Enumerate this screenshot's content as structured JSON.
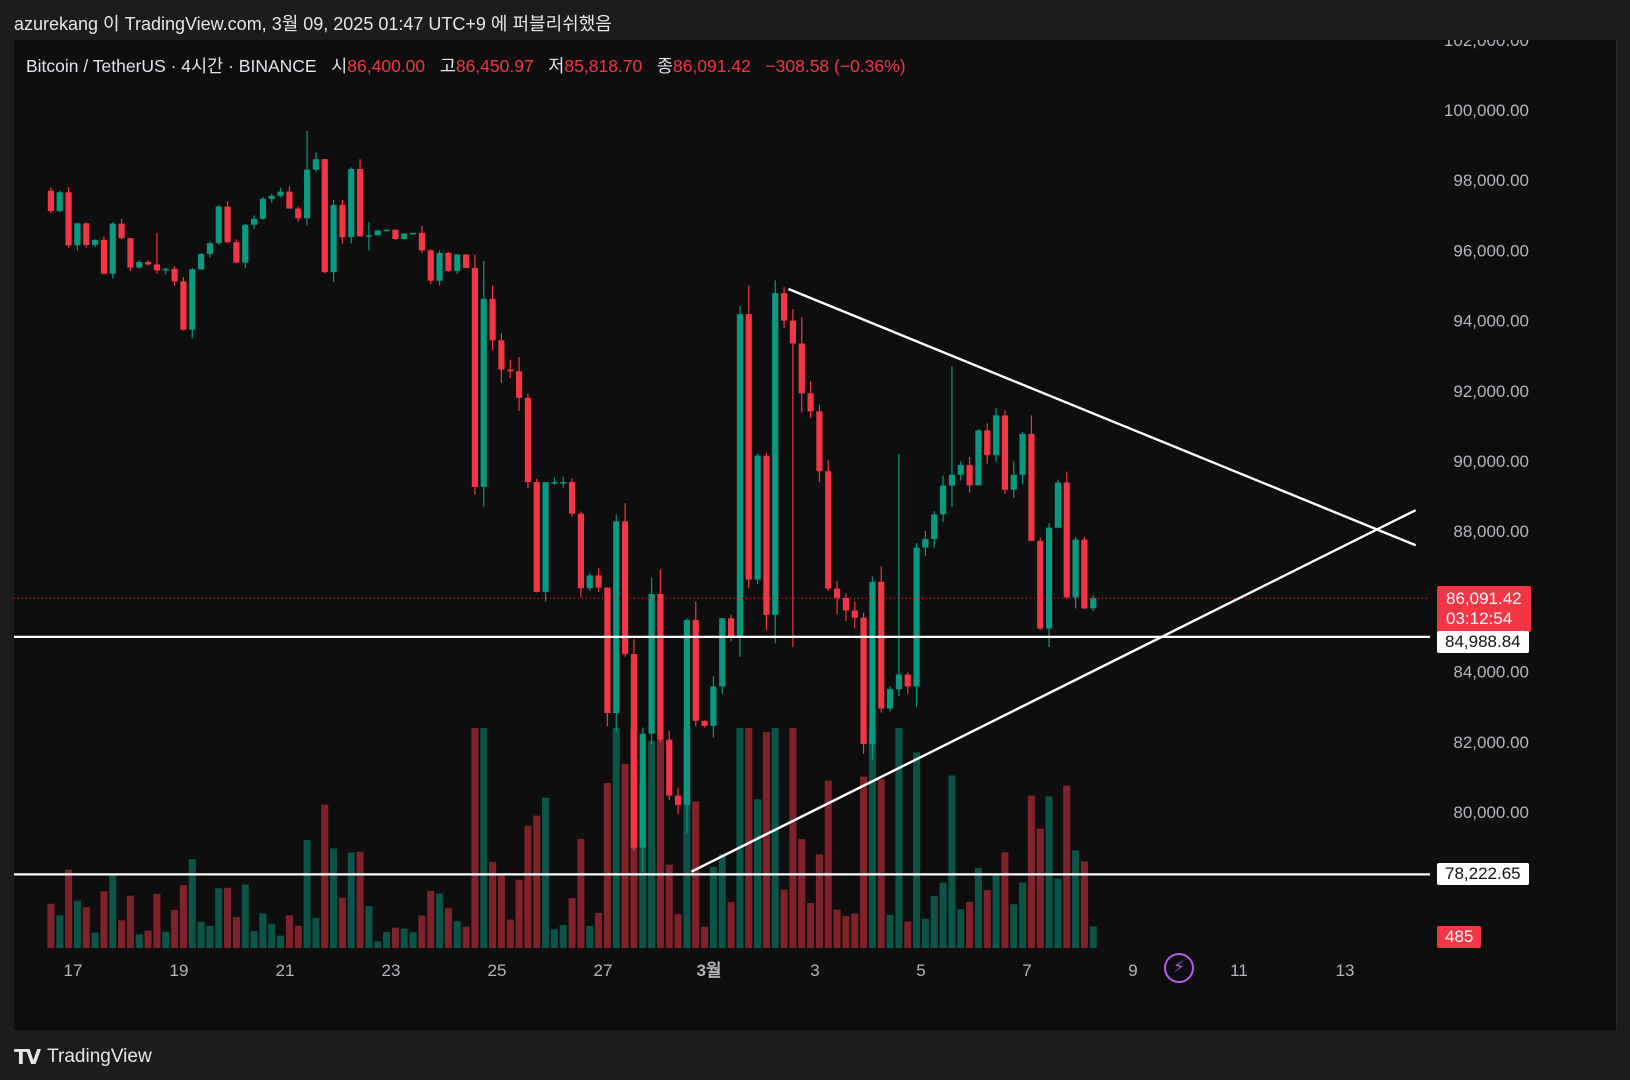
{
  "header": {
    "title": "azurekang 이 TradingView.com, 3월 09, 2025 01:47 UTC+9 에 퍼블리쉬했음"
  },
  "legend": {
    "symbol": "Bitcoin / TetherUS · 4시간 · BINANCE",
    "open_label": "시",
    "open": "86,400.00",
    "high_label": "고",
    "high": "86,450.97",
    "low_label": "저",
    "low": "85,818.70",
    "close_label": "종",
    "close": "86,091.42",
    "change": "−308.58 (−0.36%)"
  },
  "price_tags": {
    "last_price": "86,091.42",
    "countdown": "03:12:54",
    "level_1": "84,988.84",
    "level_2": "78,222.65",
    "volume": "485"
  },
  "footer": {
    "brand": "TradingView"
  },
  "colors": {
    "up": "#089981",
    "down": "#f23645",
    "background": "#0e0e0e",
    "lines": "#ffffff"
  },
  "chart_data": {
    "type": "candlestick",
    "interval": "4h",
    "y_axis_labels": [
      "102,000.00",
      "100,000.00",
      "98,000.00",
      "96,000.00",
      "94,000.00",
      "92,000.00",
      "90,000.00",
      "88,000.00",
      "84,000.00",
      "82,000.00",
      "80,000.00"
    ],
    "y_axis_values": [
      102000,
      100000,
      98000,
      96000,
      94000,
      92000,
      90000,
      88000,
      84000,
      82000,
      80000
    ],
    "x_axis_labels": [
      "17",
      "19",
      "21",
      "23",
      "25",
      "27",
      "3월",
      "3",
      "5",
      "7",
      "9",
      "11",
      "13"
    ],
    "horizontal_levels": [
      84988.84,
      78222.65
    ],
    "last_price": 86091.42,
    "trendlines": [
      {
        "name": "upper",
        "from": {
          "date": "03-02 12:00",
          "price": 94900
        },
        "to": {
          "date": "03-14 08:00",
          "price": 87600
        }
      },
      {
        "name": "lower",
        "from": {
          "date": "02-28 16:00",
          "price": 78300
        },
        "to": {
          "date": "03-14 08:00",
          "price": 88600
        }
      }
    ],
    "ohlc_daily_approx": [
      {
        "date": "02-17",
        "open": 97700,
        "high": 97800,
        "low": 96000,
        "close": 96300
      },
      {
        "date": "02-18",
        "open": 96300,
        "high": 96900,
        "low": 95200,
        "close": 95600
      },
      {
        "date": "02-19",
        "open": 95600,
        "high": 96500,
        "low": 93500,
        "close": 95900
      },
      {
        "date": "02-20",
        "open": 95900,
        "high": 97400,
        "low": 95500,
        "close": 96900
      },
      {
        "date": "02-21",
        "open": 96900,
        "high": 99400,
        "low": 96700,
        "close": 98300
      },
      {
        "date": "02-22",
        "open": 98300,
        "high": 98600,
        "low": 95100,
        "close": 96400
      },
      {
        "date": "02-23",
        "open": 96400,
        "high": 96800,
        "low": 96000,
        "close": 96500
      },
      {
        "date": "02-24",
        "open": 96500,
        "high": 96700,
        "low": 95000,
        "close": 95500
      },
      {
        "date": "02-25",
        "open": 95500,
        "high": 95700,
        "low": 88700,
        "close": 91800
      },
      {
        "date": "02-26",
        "open": 91800,
        "high": 89400,
        "low": 86000,
        "close": 88500
      },
      {
        "date": "02-27",
        "open": 88500,
        "high": 88800,
        "low": 82300,
        "close": 84500
      },
      {
        "date": "02-28",
        "open": 84500,
        "high": 86900,
        "low": 78300,
        "close": 80200
      },
      {
        "date": "03-01",
        "open": 80200,
        "high": 86000,
        "low": 79400,
        "close": 85000
      },
      {
        "date": "03-02",
        "open": 85000,
        "high": 95000,
        "low": 84800,
        "close": 94000
      },
      {
        "date": "03-03",
        "open": 94000,
        "high": 94100,
        "low": 84700,
        "close": 86100
      },
      {
        "date": "03-04",
        "open": 86100,
        "high": 87000,
        "low": 81500,
        "close": 83500
      },
      {
        "date": "03-05",
        "open": 83500,
        "high": 90200,
        "low": 83000,
        "close": 89300
      },
      {
        "date": "03-06",
        "open": 89300,
        "high": 92700,
        "low": 88700,
        "close": 91300
      },
      {
        "date": "03-07",
        "open": 91300,
        "high": 91300,
        "low": 84700,
        "close": 88100
      },
      {
        "date": "03-08",
        "open": 88100,
        "high": 89700,
        "low": 85800,
        "close": 86091.42
      }
    ]
  }
}
